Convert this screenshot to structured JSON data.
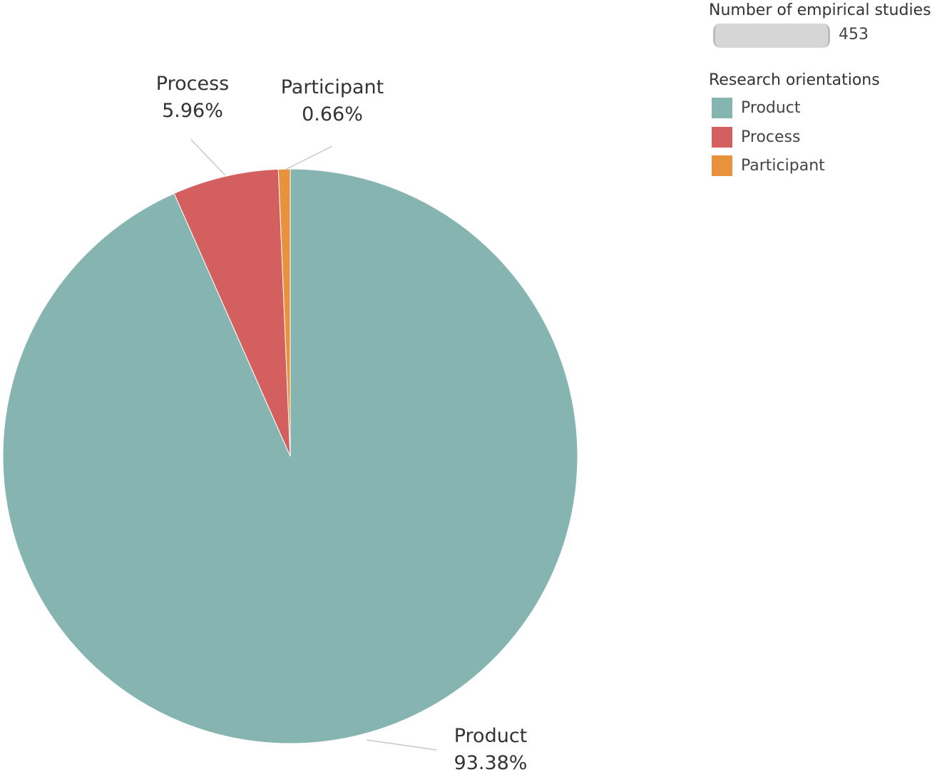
{
  "chart_data": {
    "type": "pie",
    "title": "",
    "categories": [
      "Product",
      "Process",
      "Participant"
    ],
    "values": [
      93.38,
      5.96,
      0.66
    ],
    "value_unit": "%",
    "colors": [
      "#86b4b0",
      "#d3605f",
      "#e8923e"
    ],
    "labels": [
      {
        "name": "Product",
        "pct": "93.38%"
      },
      {
        "name": "Process",
        "pct": "5.96%"
      },
      {
        "name": "Participant",
        "pct": "0.66%"
      }
    ],
    "total_count": 453,
    "legend_position": "right"
  },
  "legend": {
    "size_title": "Number of empirical studies",
    "size_value": "453",
    "color_title": "Research orientations",
    "items": [
      {
        "label": "Product",
        "color": "#86b4b0"
      },
      {
        "label": "Process",
        "color": "#d3605f"
      },
      {
        "label": "Participant",
        "color": "#e8923e"
      }
    ]
  }
}
